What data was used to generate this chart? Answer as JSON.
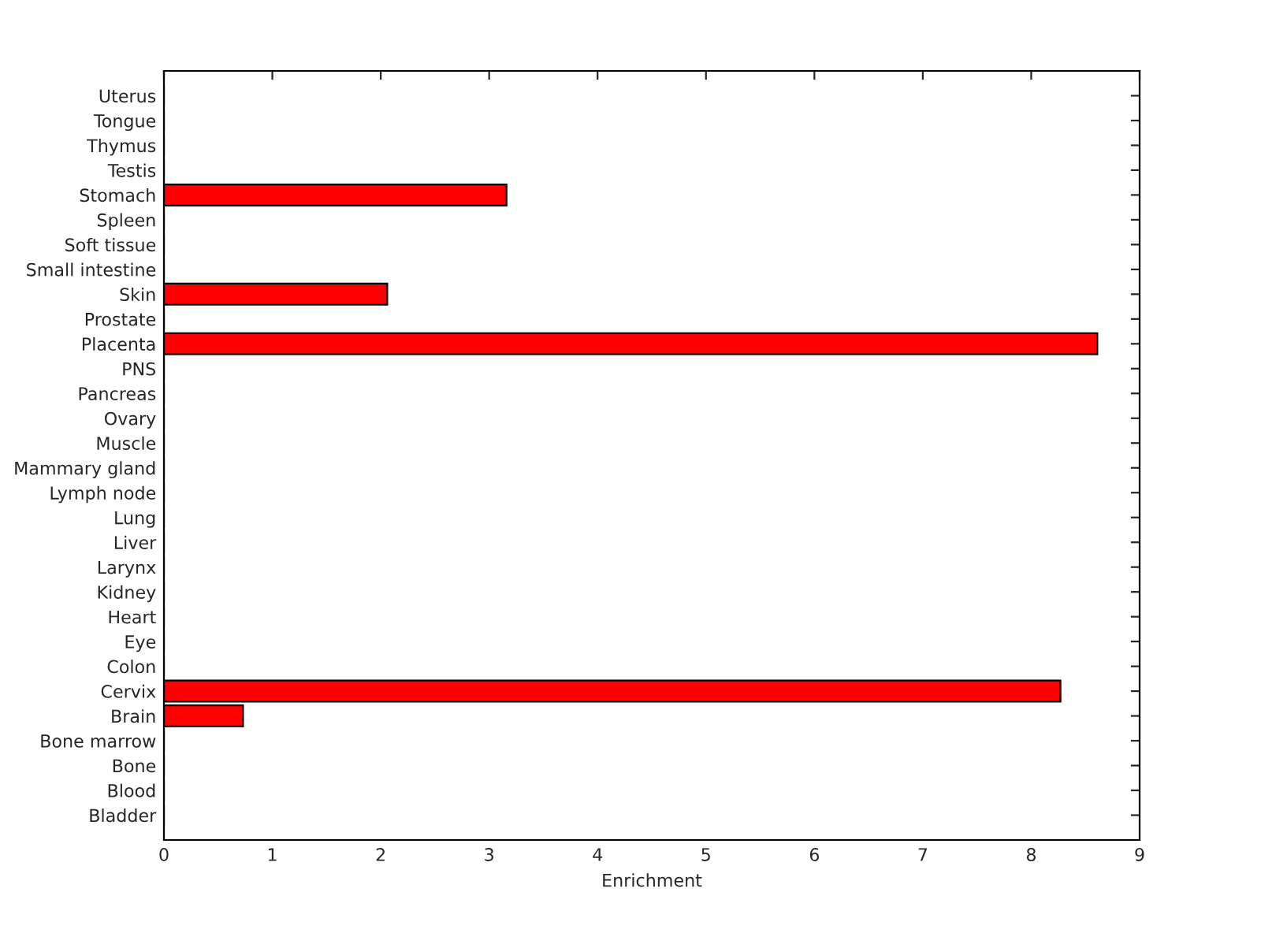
{
  "chart_data": {
    "type": "bar",
    "orientation": "horizontal",
    "xlabel": "Enrichment",
    "categories": [
      "Uterus",
      "Tongue",
      "Thymus",
      "Testis",
      "Stomach",
      "Spleen",
      "Soft tissue",
      "Small intestine",
      "Skin",
      "Prostate",
      "Placenta",
      "PNS",
      "Pancreas",
      "Ovary",
      "Muscle",
      "Mammary gland",
      "Lymph node",
      "Lung",
      "Liver",
      "Larynx",
      "Kidney",
      "Heart",
      "Eye",
      "Colon",
      "Cervix",
      "Brain",
      "Bone marrow",
      "Bone",
      "Blood",
      "Bladder"
    ],
    "values": [
      0,
      0,
      0,
      0,
      3.16,
      0,
      0,
      0,
      2.06,
      0,
      8.61,
      0,
      0,
      0,
      0,
      0,
      0,
      0,
      0,
      0,
      0,
      0,
      0,
      0,
      8.27,
      0.73,
      0,
      0,
      0,
      0
    ],
    "color": "#ff0000",
    "xlim": [
      0,
      9
    ],
    "xticks": [
      0,
      1,
      2,
      3,
      4,
      5,
      6,
      7,
      8,
      9
    ],
    "grid": false
  }
}
